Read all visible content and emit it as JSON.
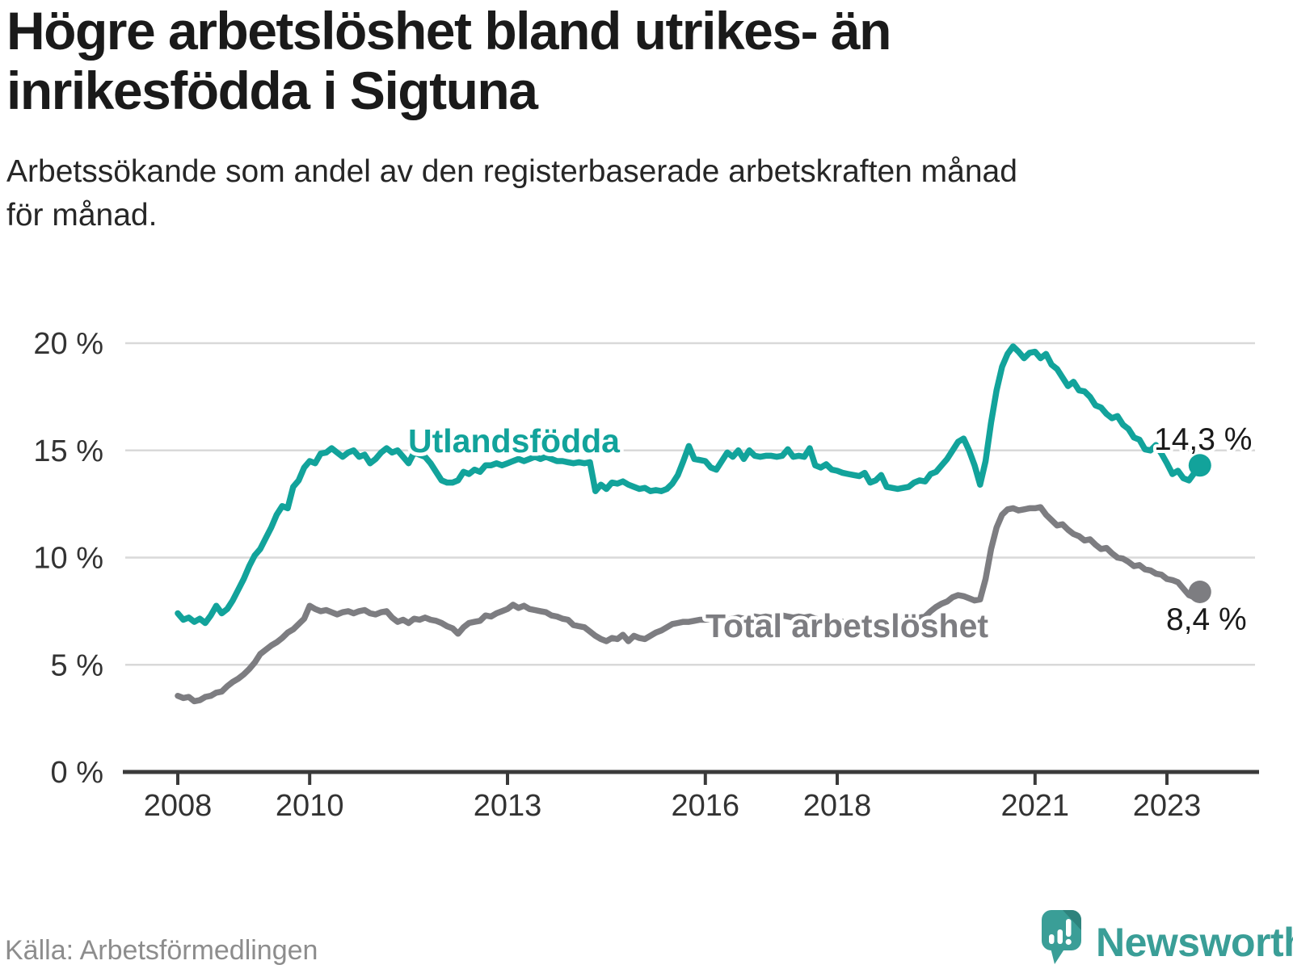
{
  "header": {
    "title_lines": [
      "Högre arbetslöshet bland utrikes- än",
      "inrikesfödda i Sigtuna"
    ],
    "subtitle_lines": [
      "Arbetssökande som andel av den registerbaserade arbetskraften månad",
      "för månad."
    ]
  },
  "footer": {
    "source": "Källa: Arbetsförmedlingen",
    "brand": "Newsworthy"
  },
  "colors": {
    "teal": "#12a39b",
    "gray": "#7d7d81",
    "grid": "#d9d9d9",
    "axis": "#3a3a3a",
    "tick_label": "#333333",
    "value_label": "#1a1a1a",
    "logo": "#3a9e97",
    "logo_fold": "#2e837d"
  },
  "chart_data": {
    "type": "line",
    "title": "Högre arbetslöshet bland utrikes- än inrikesfödda i Sigtuna",
    "subtitle": "Arbetssökande som andel av den registerbaserade arbetskraften månad för månad.",
    "frequency": "monthly",
    "x_start": "2008-01",
    "x_end": "2023-07",
    "xlabel": "",
    "ylabel": "",
    "ylim": [
      0,
      21
    ],
    "grid": "horizontal",
    "legend_position": "inline-labels",
    "yticks": [
      {
        "value": 0,
        "label": "0 %"
      },
      {
        "value": 5,
        "label": "5 %"
      },
      {
        "value": 10,
        "label": "10 %"
      },
      {
        "value": 15,
        "label": "15 %"
      },
      {
        "value": 20,
        "label": "20 %"
      }
    ],
    "xticks": [
      {
        "value": 2008,
        "label": "2008"
      },
      {
        "value": 2010,
        "label": "2010"
      },
      {
        "value": 2013,
        "label": "2013"
      },
      {
        "value": 2016,
        "label": "2016"
      },
      {
        "value": 2018,
        "label": "2018"
      },
      {
        "value": 2021,
        "label": "2021"
      },
      {
        "value": 2023,
        "label": "2023"
      }
    ],
    "series": [
      {
        "name": "Utlandsfödda",
        "slug": "utlandsfodda",
        "color": "#12a39b",
        "end_label": "14,3 %",
        "end_value": 14.3,
        "values": [
          7.4,
          7.1,
          7.2,
          7.0,
          7.15,
          6.95,
          7.3,
          7.75,
          7.4,
          7.6,
          8.0,
          8.5,
          9.0,
          9.6,
          10.1,
          10.4,
          10.9,
          11.4,
          12.0,
          12.4,
          12.3,
          13.3,
          13.6,
          14.2,
          14.5,
          14.4,
          14.85,
          14.9,
          15.1,
          14.9,
          14.7,
          14.9,
          15.0,
          14.7,
          14.8,
          14.4,
          14.6,
          14.9,
          15.1,
          14.9,
          15.0,
          14.7,
          14.4,
          14.9,
          14.8,
          14.7,
          14.4,
          14.0,
          13.6,
          13.5,
          13.5,
          13.6,
          14.0,
          13.9,
          14.1,
          14.0,
          14.3,
          14.3,
          14.4,
          14.3,
          14.4,
          14.5,
          14.6,
          14.5,
          14.6,
          14.7,
          14.6,
          14.7,
          14.6,
          14.5,
          14.5,
          14.45,
          14.4,
          14.45,
          14.4,
          14.45,
          13.1,
          13.4,
          13.2,
          13.5,
          13.45,
          13.55,
          13.4,
          13.3,
          13.2,
          13.25,
          13.1,
          13.15,
          13.1,
          13.2,
          13.45,
          13.85,
          14.5,
          15.2,
          14.6,
          14.55,
          14.5,
          14.2,
          14.1,
          14.5,
          14.9,
          14.7,
          15.0,
          14.6,
          15.0,
          14.75,
          14.7,
          14.75,
          14.75,
          14.7,
          14.75,
          15.05,
          14.7,
          14.75,
          14.7,
          15.1,
          14.3,
          14.2,
          14.35,
          14.1,
          14.05,
          13.95,
          13.9,
          13.85,
          13.8,
          13.95,
          13.5,
          13.6,
          13.85,
          13.3,
          13.25,
          13.2,
          13.25,
          13.3,
          13.5,
          13.6,
          13.55,
          13.9,
          14.0,
          14.3,
          14.6,
          15.0,
          15.4,
          15.55,
          15.0,
          14.3,
          13.4,
          14.5,
          16.3,
          17.8,
          18.9,
          19.5,
          19.85,
          19.6,
          19.3,
          19.55,
          19.6,
          19.3,
          19.5,
          19.0,
          18.8,
          18.4,
          18.0,
          18.2,
          17.8,
          17.75,
          17.5,
          17.1,
          17.0,
          16.7,
          16.5,
          16.6,
          16.2,
          16.0,
          15.6,
          15.5,
          15.05,
          15.0,
          15.25,
          14.85,
          14.4,
          13.9,
          14.05,
          13.7,
          13.6,
          13.95,
          14.3
        ]
      },
      {
        "name": "Total arbetslöshet",
        "slug": "total-arbetsloshet",
        "color": "#7d7d81",
        "end_label": "8,4 %",
        "end_value": 8.4,
        "values": [
          3.55,
          3.45,
          3.5,
          3.3,
          3.35,
          3.5,
          3.55,
          3.7,
          3.75,
          4.0,
          4.2,
          4.35,
          4.55,
          4.8,
          5.1,
          5.5,
          5.7,
          5.9,
          6.05,
          6.25,
          6.5,
          6.65,
          6.9,
          7.15,
          7.75,
          7.6,
          7.5,
          7.55,
          7.45,
          7.35,
          7.45,
          7.5,
          7.4,
          7.5,
          7.55,
          7.4,
          7.35,
          7.45,
          7.5,
          7.2,
          7.0,
          7.1,
          6.95,
          7.15,
          7.1,
          7.2,
          7.1,
          7.05,
          6.95,
          6.8,
          6.7,
          6.45,
          6.75,
          6.95,
          7.0,
          7.05,
          7.3,
          7.25,
          7.4,
          7.5,
          7.6,
          7.8,
          7.65,
          7.75,
          7.6,
          7.55,
          7.5,
          7.45,
          7.3,
          7.25,
          7.15,
          7.1,
          6.85,
          6.8,
          6.75,
          6.55,
          6.35,
          6.2,
          6.1,
          6.25,
          6.2,
          6.4,
          6.1,
          6.35,
          6.25,
          6.2,
          6.35,
          6.5,
          6.6,
          6.75,
          6.9,
          6.95,
          7.0,
          7.0,
          7.05,
          7.1,
          7.1,
          7.15,
          7.2,
          7.15,
          7.1,
          7.15,
          7.2,
          7.15,
          7.2,
          7.25,
          7.2,
          7.25,
          7.2,
          7.25,
          7.3,
          7.25,
          7.2,
          7.25,
          7.2,
          7.25,
          7.15,
          7.1,
          7.15,
          7.1,
          7.05,
          7.0,
          6.95,
          6.9,
          6.85,
          6.9,
          6.85,
          6.9,
          6.95,
          6.9,
          6.95,
          7.0,
          7.05,
          7.1,
          7.15,
          7.2,
          7.25,
          7.5,
          7.7,
          7.85,
          7.95,
          8.15,
          8.25,
          8.2,
          8.1,
          8.0,
          8.05,
          9.0,
          10.4,
          11.4,
          12.0,
          12.25,
          12.3,
          12.2,
          12.25,
          12.3,
          12.3,
          12.35,
          12.0,
          11.75,
          11.5,
          11.55,
          11.3,
          11.1,
          11.0,
          10.8,
          10.85,
          10.6,
          10.4,
          10.45,
          10.2,
          10.0,
          9.95,
          9.8,
          9.6,
          9.65,
          9.45,
          9.4,
          9.25,
          9.2,
          9.0,
          8.95,
          8.85,
          8.55,
          8.25,
          8.15,
          8.4
        ]
      }
    ]
  }
}
